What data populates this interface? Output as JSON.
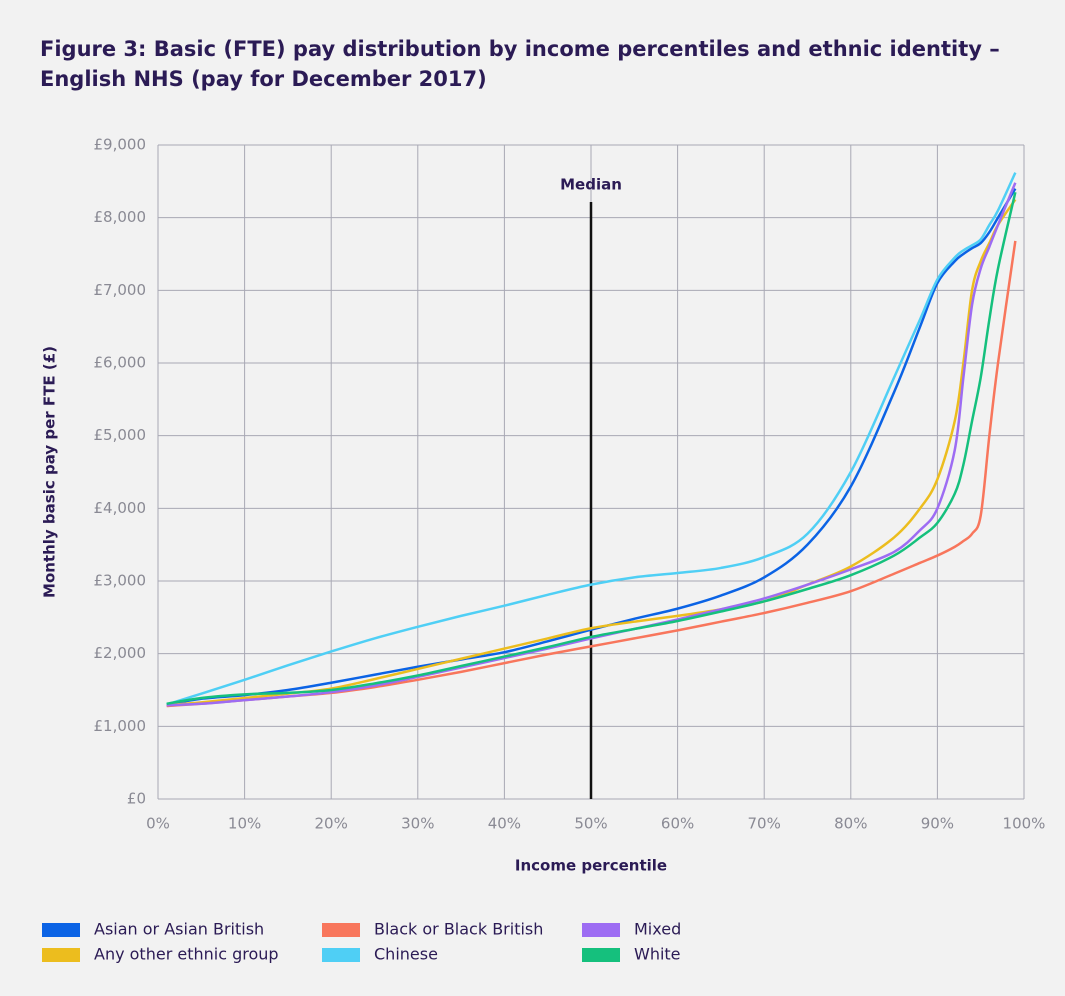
{
  "chart_data": {
    "type": "line",
    "title": "Figure 3: Basic (FTE) pay distribution by income percentiles and ethnic identity – English NHS (pay for December 2017)",
    "xlabel": "Income percentile",
    "ylabel": "Monthly basic pay per FTE (£)",
    "annotations": [
      {
        "text": "Median",
        "x": 50
      }
    ],
    "x": [
      1,
      5,
      10,
      15,
      20,
      25,
      30,
      35,
      40,
      45,
      50,
      55,
      60,
      65,
      70,
      75,
      80,
      85,
      88,
      90,
      92,
      93,
      94,
      95,
      96,
      97,
      99
    ],
    "series": [
      {
        "name": "Asian or Asian British",
        "color": "#0b63e5",
        "values": [
          1300,
          1380,
          1430,
          1500,
          1600,
          1710,
          1820,
          1920,
          2020,
          2170,
          2330,
          2480,
          2620,
          2800,
          3050,
          3500,
          4300,
          5600,
          6500,
          7100,
          7400,
          7500,
          7580,
          7650,
          7800,
          8000,
          8400
        ]
      },
      {
        "name": "Any other ethnic group",
        "color": "#ecbd1e",
        "values": [
          1290,
          1330,
          1390,
          1450,
          1520,
          1650,
          1790,
          1930,
          2070,
          2210,
          2350,
          2440,
          2520,
          2610,
          2720,
          2950,
          3200,
          3600,
          4000,
          4400,
          5200,
          6000,
          7000,
          7400,
          7650,
          7900,
          8250
        ]
      },
      {
        "name": "Black or Black British",
        "color": "#f8765c",
        "values": [
          1280,
          1310,
          1360,
          1410,
          1460,
          1540,
          1640,
          1750,
          1870,
          1990,
          2100,
          2210,
          2320,
          2440,
          2560,
          2700,
          2860,
          3100,
          3250,
          3350,
          3470,
          3550,
          3650,
          3900,
          5000,
          6000,
          7680
        ]
      },
      {
        "name": "Chinese",
        "color": "#4fcff5",
        "values": [
          1300,
          1450,
          1640,
          1840,
          2030,
          2210,
          2370,
          2520,
          2660,
          2810,
          2950,
          3050,
          3110,
          3180,
          3330,
          3650,
          4500,
          5800,
          6600,
          7150,
          7450,
          7550,
          7620,
          7700,
          7900,
          8100,
          8620
        ]
      },
      {
        "name": "Mixed",
        "color": "#9d6cf3",
        "values": [
          1290,
          1310,
          1360,
          1410,
          1470,
          1560,
          1680,
          1810,
          1940,
          2070,
          2210,
          2340,
          2470,
          2610,
          2760,
          2950,
          3160,
          3400,
          3700,
          4000,
          4800,
          5800,
          6800,
          7300,
          7600,
          7900,
          8480
        ]
      },
      {
        "name": "White",
        "color": "#15c07d",
        "values": [
          1310,
          1390,
          1440,
          1460,
          1500,
          1590,
          1700,
          1830,
          1960,
          2090,
          2230,
          2340,
          2450,
          2580,
          2720,
          2890,
          3080,
          3350,
          3600,
          3800,
          4200,
          4600,
          5200,
          5800,
          6600,
          7300,
          8350
        ]
      }
    ],
    "xlim": [
      0,
      100
    ],
    "xticks": [
      {
        "value": 0,
        "label": "0%"
      },
      {
        "value": 10,
        "label": "10%"
      },
      {
        "value": 20,
        "label": "20%"
      },
      {
        "value": 30,
        "label": "30%"
      },
      {
        "value": 40,
        "label": "40%"
      },
      {
        "value": 50,
        "label": "50%"
      },
      {
        "value": 60,
        "label": "60%"
      },
      {
        "value": 70,
        "label": "70%"
      },
      {
        "value": 80,
        "label": "80%"
      },
      {
        "value": 90,
        "label": "90%"
      },
      {
        "value": 100,
        "label": "100%"
      }
    ],
    "ylim": [
      0,
      9000
    ],
    "yticks": [
      {
        "value": 0,
        "label": "£0"
      },
      {
        "value": 1000,
        "label": "£1,000"
      },
      {
        "value": 2000,
        "label": "£2,000"
      },
      {
        "value": 3000,
        "label": "£3,000"
      },
      {
        "value": 4000,
        "label": "£4,000"
      },
      {
        "value": 5000,
        "label": "£5,000"
      },
      {
        "value": 6000,
        "label": "£6,000"
      },
      {
        "value": 7000,
        "label": "£7,000"
      },
      {
        "value": 8000,
        "label": "£8,000"
      },
      {
        "value": 9000,
        "label": "£9,000"
      }
    ],
    "grid": true
  }
}
